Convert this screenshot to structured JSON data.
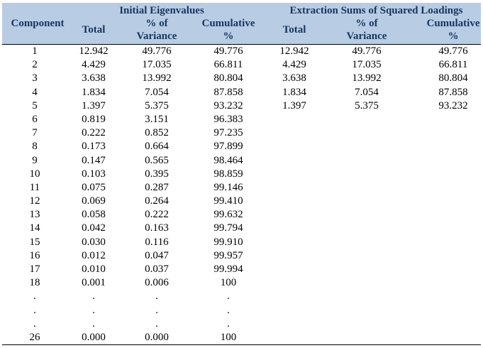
{
  "table": {
    "headers": {
      "component": "Component",
      "initial_group": "Initial Eigenvalues",
      "extraction_group": "Extraction Sums of Squared Loadings",
      "total": "Total",
      "pct_line1": "% of",
      "pct_line2": "Variance",
      "cum_line1": "Cumulative",
      "cum_line2": "%"
    },
    "rows": [
      [
        "1",
        "12.942",
        "49.776",
        "49.776",
        "12.942",
        "49.776",
        "49.776"
      ],
      [
        "2",
        "4.429",
        "17.035",
        "66.811",
        "4.429",
        "17.035",
        "66.811"
      ],
      [
        "3",
        "3.638",
        "13.992",
        "80.804",
        "3.638",
        "13.992",
        "80.804"
      ],
      [
        "4",
        "1.834",
        "7.054",
        "87.858",
        "1.834",
        "7.054",
        "87.858"
      ],
      [
        "5",
        "1.397",
        "5.375",
        "93.232",
        "1.397",
        "5.375",
        "93.232"
      ],
      [
        "6",
        "0.819",
        "3.151",
        "96.383",
        "",
        "",
        ""
      ],
      [
        "7",
        "0.222",
        "0.852",
        "97.235",
        "",
        "",
        ""
      ],
      [
        "8",
        "0.173",
        "0.664",
        "97.899",
        "",
        "",
        ""
      ],
      [
        "9",
        "0.147",
        "0.565",
        "98.464",
        "",
        "",
        ""
      ],
      [
        "10",
        "0.103",
        "0.395",
        "98.859",
        "",
        "",
        ""
      ],
      [
        "11",
        "0.075",
        "0.287",
        "99.146",
        "",
        "",
        ""
      ],
      [
        "12",
        "0.069",
        "0.264",
        "99.410",
        "",
        "",
        ""
      ],
      [
        "13",
        "0.058",
        "0.222",
        "99.632",
        "",
        "",
        ""
      ],
      [
        "14",
        "0.042",
        "0.163",
        "99.794",
        "",
        "",
        ""
      ],
      [
        "15",
        "0.030",
        "0.116",
        "99.910",
        "",
        "",
        ""
      ],
      [
        "16",
        "0.012",
        "0.047",
        "99.957",
        "",
        "",
        ""
      ],
      [
        "17",
        "0.010",
        "0.037",
        "99.994",
        "",
        "",
        ""
      ],
      [
        "18",
        "0.001",
        "0.006",
        "100",
        "",
        "",
        ""
      ],
      [
        ".",
        ".",
        ".",
        ".",
        "",
        "",
        ""
      ],
      [
        ".",
        ".",
        ".",
        ".",
        "",
        "",
        ""
      ],
      [
        ".",
        ".",
        ".",
        ".",
        "",
        "",
        ""
      ],
      [
        "26",
        "0.000",
        "0.000",
        "100",
        "",
        "",
        ""
      ]
    ]
  }
}
